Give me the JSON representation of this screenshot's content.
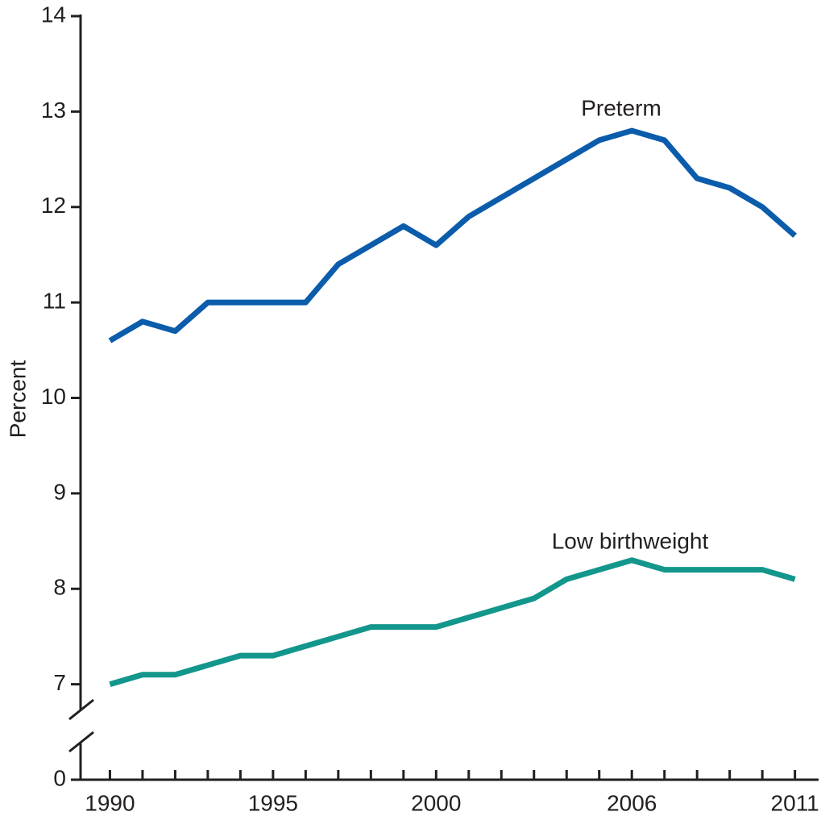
{
  "chart_data": {
    "type": "line",
    "y_label": "Percent",
    "x": [
      1990,
      1991,
      1992,
      1993,
      1994,
      1995,
      1996,
      1997,
      1998,
      1999,
      2000,
      2001,
      2002,
      2003,
      2004,
      2005,
      2006,
      2007,
      2008,
      2009,
      2010,
      2011
    ],
    "series": [
      {
        "name": "Preterm",
        "color": "#0b5cab",
        "values": [
          10.6,
          10.8,
          10.7,
          11.0,
          11.0,
          11.0,
          11.0,
          11.4,
          11.6,
          11.8,
          11.6,
          11.9,
          12.1,
          12.3,
          12.5,
          12.7,
          12.8,
          12.7,
          12.3,
          12.2,
          12.0,
          11.7
        ]
      },
      {
        "name": "Low birthweight",
        "color": "#13968b",
        "values": [
          7.0,
          7.1,
          7.1,
          7.2,
          7.3,
          7.3,
          7.4,
          7.5,
          7.6,
          7.6,
          7.6,
          7.7,
          7.8,
          7.9,
          8.1,
          8.2,
          8.3,
          8.2,
          8.2,
          8.2,
          8.2,
          8.1
        ]
      }
    ],
    "xlim": [
      1989.1,
      2011.7
    ],
    "xticks": [
      1990,
      1995,
      2000,
      2006,
      2011
    ],
    "ylim": [
      0,
      14
    ],
    "yticks": [
      0,
      7,
      8,
      9,
      10,
      11,
      12,
      13,
      14
    ],
    "axis_break": true,
    "grid": false
  }
}
